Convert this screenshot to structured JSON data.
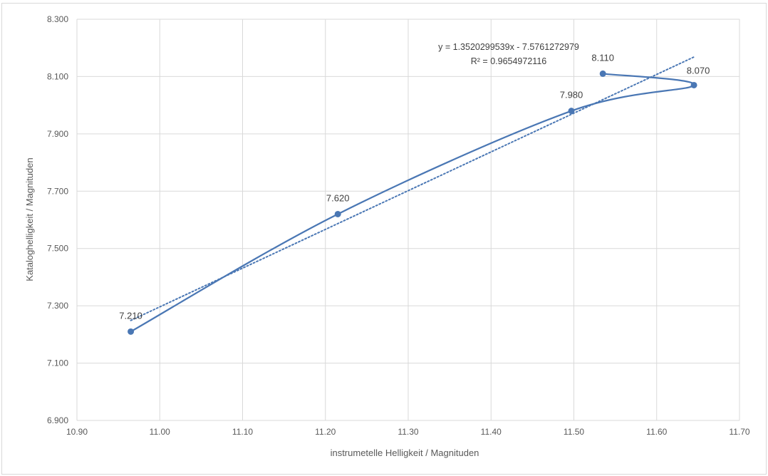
{
  "chart_data": {
    "type": "scatter",
    "title": "",
    "xlabel": "instrumetelle Helligkeit / Magnituden",
    "ylabel": "Kataloghelligkeit / Magnituden",
    "xlim": [
      10.9,
      11.7
    ],
    "ylim": [
      6.9,
      8.3
    ],
    "x_ticks": [
      "10.90",
      "11.00",
      "11.10",
      "11.20",
      "11.30",
      "11.40",
      "11.50",
      "11.60",
      "11.70"
    ],
    "y_ticks": [
      "6.900",
      "7.100",
      "7.300",
      "7.500",
      "7.700",
      "7.900",
      "8.100",
      "8.300"
    ],
    "grid": true,
    "series": [
      {
        "points": [
          {
            "x": 10.965,
            "y": 7.21,
            "label": "7.210"
          },
          {
            "x": 11.215,
            "y": 7.62,
            "label": "7.620"
          },
          {
            "x": 11.497,
            "y": 7.98,
            "label": "7.980"
          },
          {
            "x": 11.645,
            "y": 8.07,
            "label": "8.070"
          },
          {
            "x": 11.535,
            "y": 8.11,
            "label": "8.110"
          }
        ],
        "line": "smooth",
        "color": "#4a77b4"
      }
    ],
    "trendline": {
      "style": "dotted",
      "color": "#4a77b4",
      "slope": 1.3520299539,
      "intercept": -7.5761272979,
      "x_range": [
        10.965,
        11.645
      ],
      "equation": "y = 1.3520299539x - 7.5761272979",
      "r_squared": "R² = 0.9654972116"
    }
  },
  "colors": {
    "grid": "#d9d9d9",
    "series": "#4a77b4",
    "text": "#595959"
  }
}
